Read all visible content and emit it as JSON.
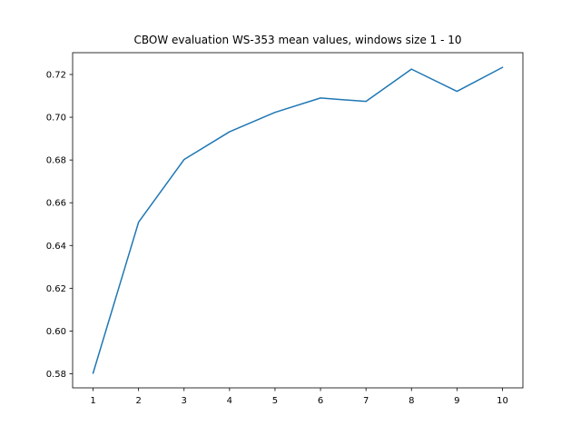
{
  "chart_data": {
    "type": "line",
    "title": "CBOW evaluation WS-353 mean values, windows size 1 - 10",
    "xlabel": "",
    "ylabel": "",
    "x": [
      1,
      2,
      3,
      4,
      5,
      6,
      7,
      8,
      9,
      10
    ],
    "series": [
      {
        "values": [
          0.5803,
          0.6509,
          0.6802,
          0.6932,
          0.7023,
          0.709,
          0.7074,
          0.7225,
          0.7121,
          0.7233
        ],
        "color": "#1f77b4"
      }
    ],
    "xlim": [
      0.55,
      10.45
    ],
    "ylim": [
      0.5734,
      0.7302
    ],
    "xticks": [
      1,
      2,
      3,
      4,
      5,
      6,
      7,
      8,
      9,
      10
    ],
    "xtick_labels": [
      "1",
      "2",
      "3",
      "4",
      "5",
      "6",
      "7",
      "8",
      "9",
      "10"
    ],
    "yticks": [
      0.58,
      0.6,
      0.62,
      0.64,
      0.66,
      0.68,
      0.7,
      0.72
    ],
    "ytick_labels": [
      "0.58",
      "0.60",
      "0.62",
      "0.64",
      "0.66",
      "0.68",
      "0.70",
      "0.72"
    ],
    "grid": false,
    "legend": "none"
  }
}
